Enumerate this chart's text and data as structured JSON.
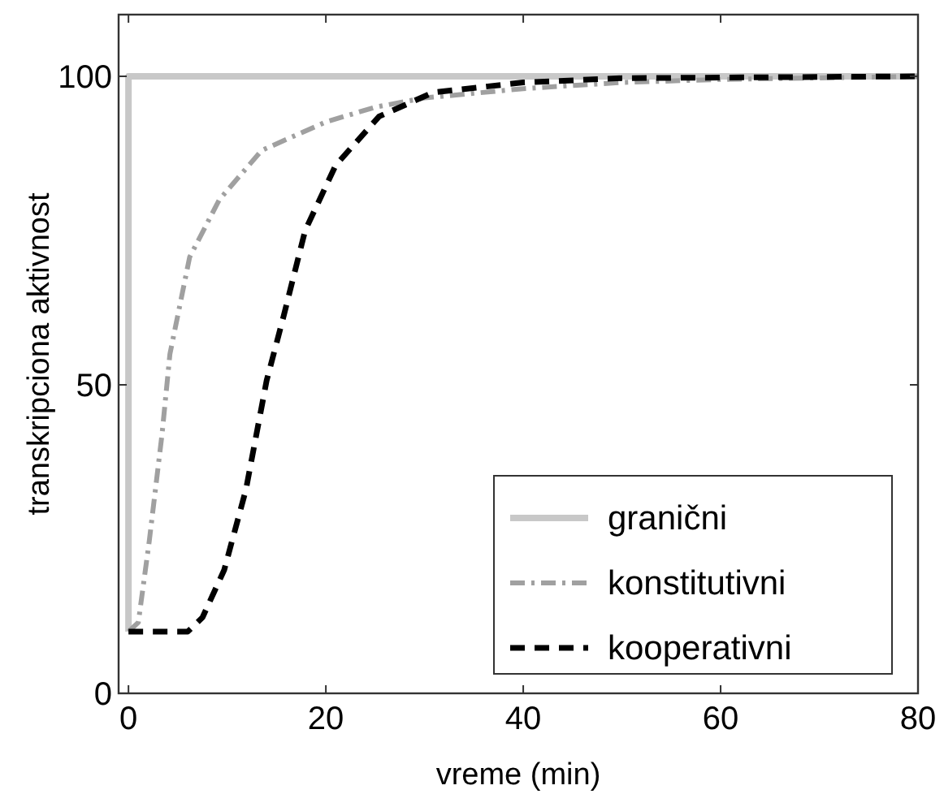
{
  "chart_data": {
    "type": "line",
    "xlabel": "vreme (min)",
    "ylabel": "transkripciona aktivnost",
    "xlim": [
      -1,
      80
    ],
    "ylim": [
      0,
      110
    ],
    "xticks": [
      0,
      20,
      40,
      60,
      80
    ],
    "yticks": [
      0,
      50,
      100
    ],
    "grid": false,
    "legend": "bottom right",
    "series": [
      {
        "name": "granični",
        "color": "#c8c8c8",
        "line_style": "solid",
        "x": [
          0,
          0,
          80
        ],
        "values": [
          10,
          100,
          100
        ]
      },
      {
        "name": "konstitutivni",
        "color": "#a0a0a0",
        "line_style": "dashdot",
        "x": [
          0,
          1,
          2.1,
          3.4,
          4.2,
          6.2,
          9.2,
          13.5,
          20,
          25,
          30,
          40,
          50,
          60,
          80
        ],
        "values": [
          10,
          11.5,
          24.6,
          42,
          55,
          70.7,
          80,
          88,
          92.6,
          95,
          96.5,
          98,
          99,
          99.5,
          100
        ]
      },
      {
        "name": "kooperativni",
        "color": "#000000",
        "line_style": "dashed",
        "x": [
          0,
          6,
          7.5,
          9.7,
          11.9,
          14,
          15.7,
          17.9,
          21,
          25.4,
          30.9,
          40,
          50,
          80
        ],
        "values": [
          10,
          10,
          12.3,
          20,
          33,
          50.7,
          61,
          75,
          85.6,
          93.5,
          97.4,
          99,
          99.7,
          100
        ]
      }
    ]
  }
}
